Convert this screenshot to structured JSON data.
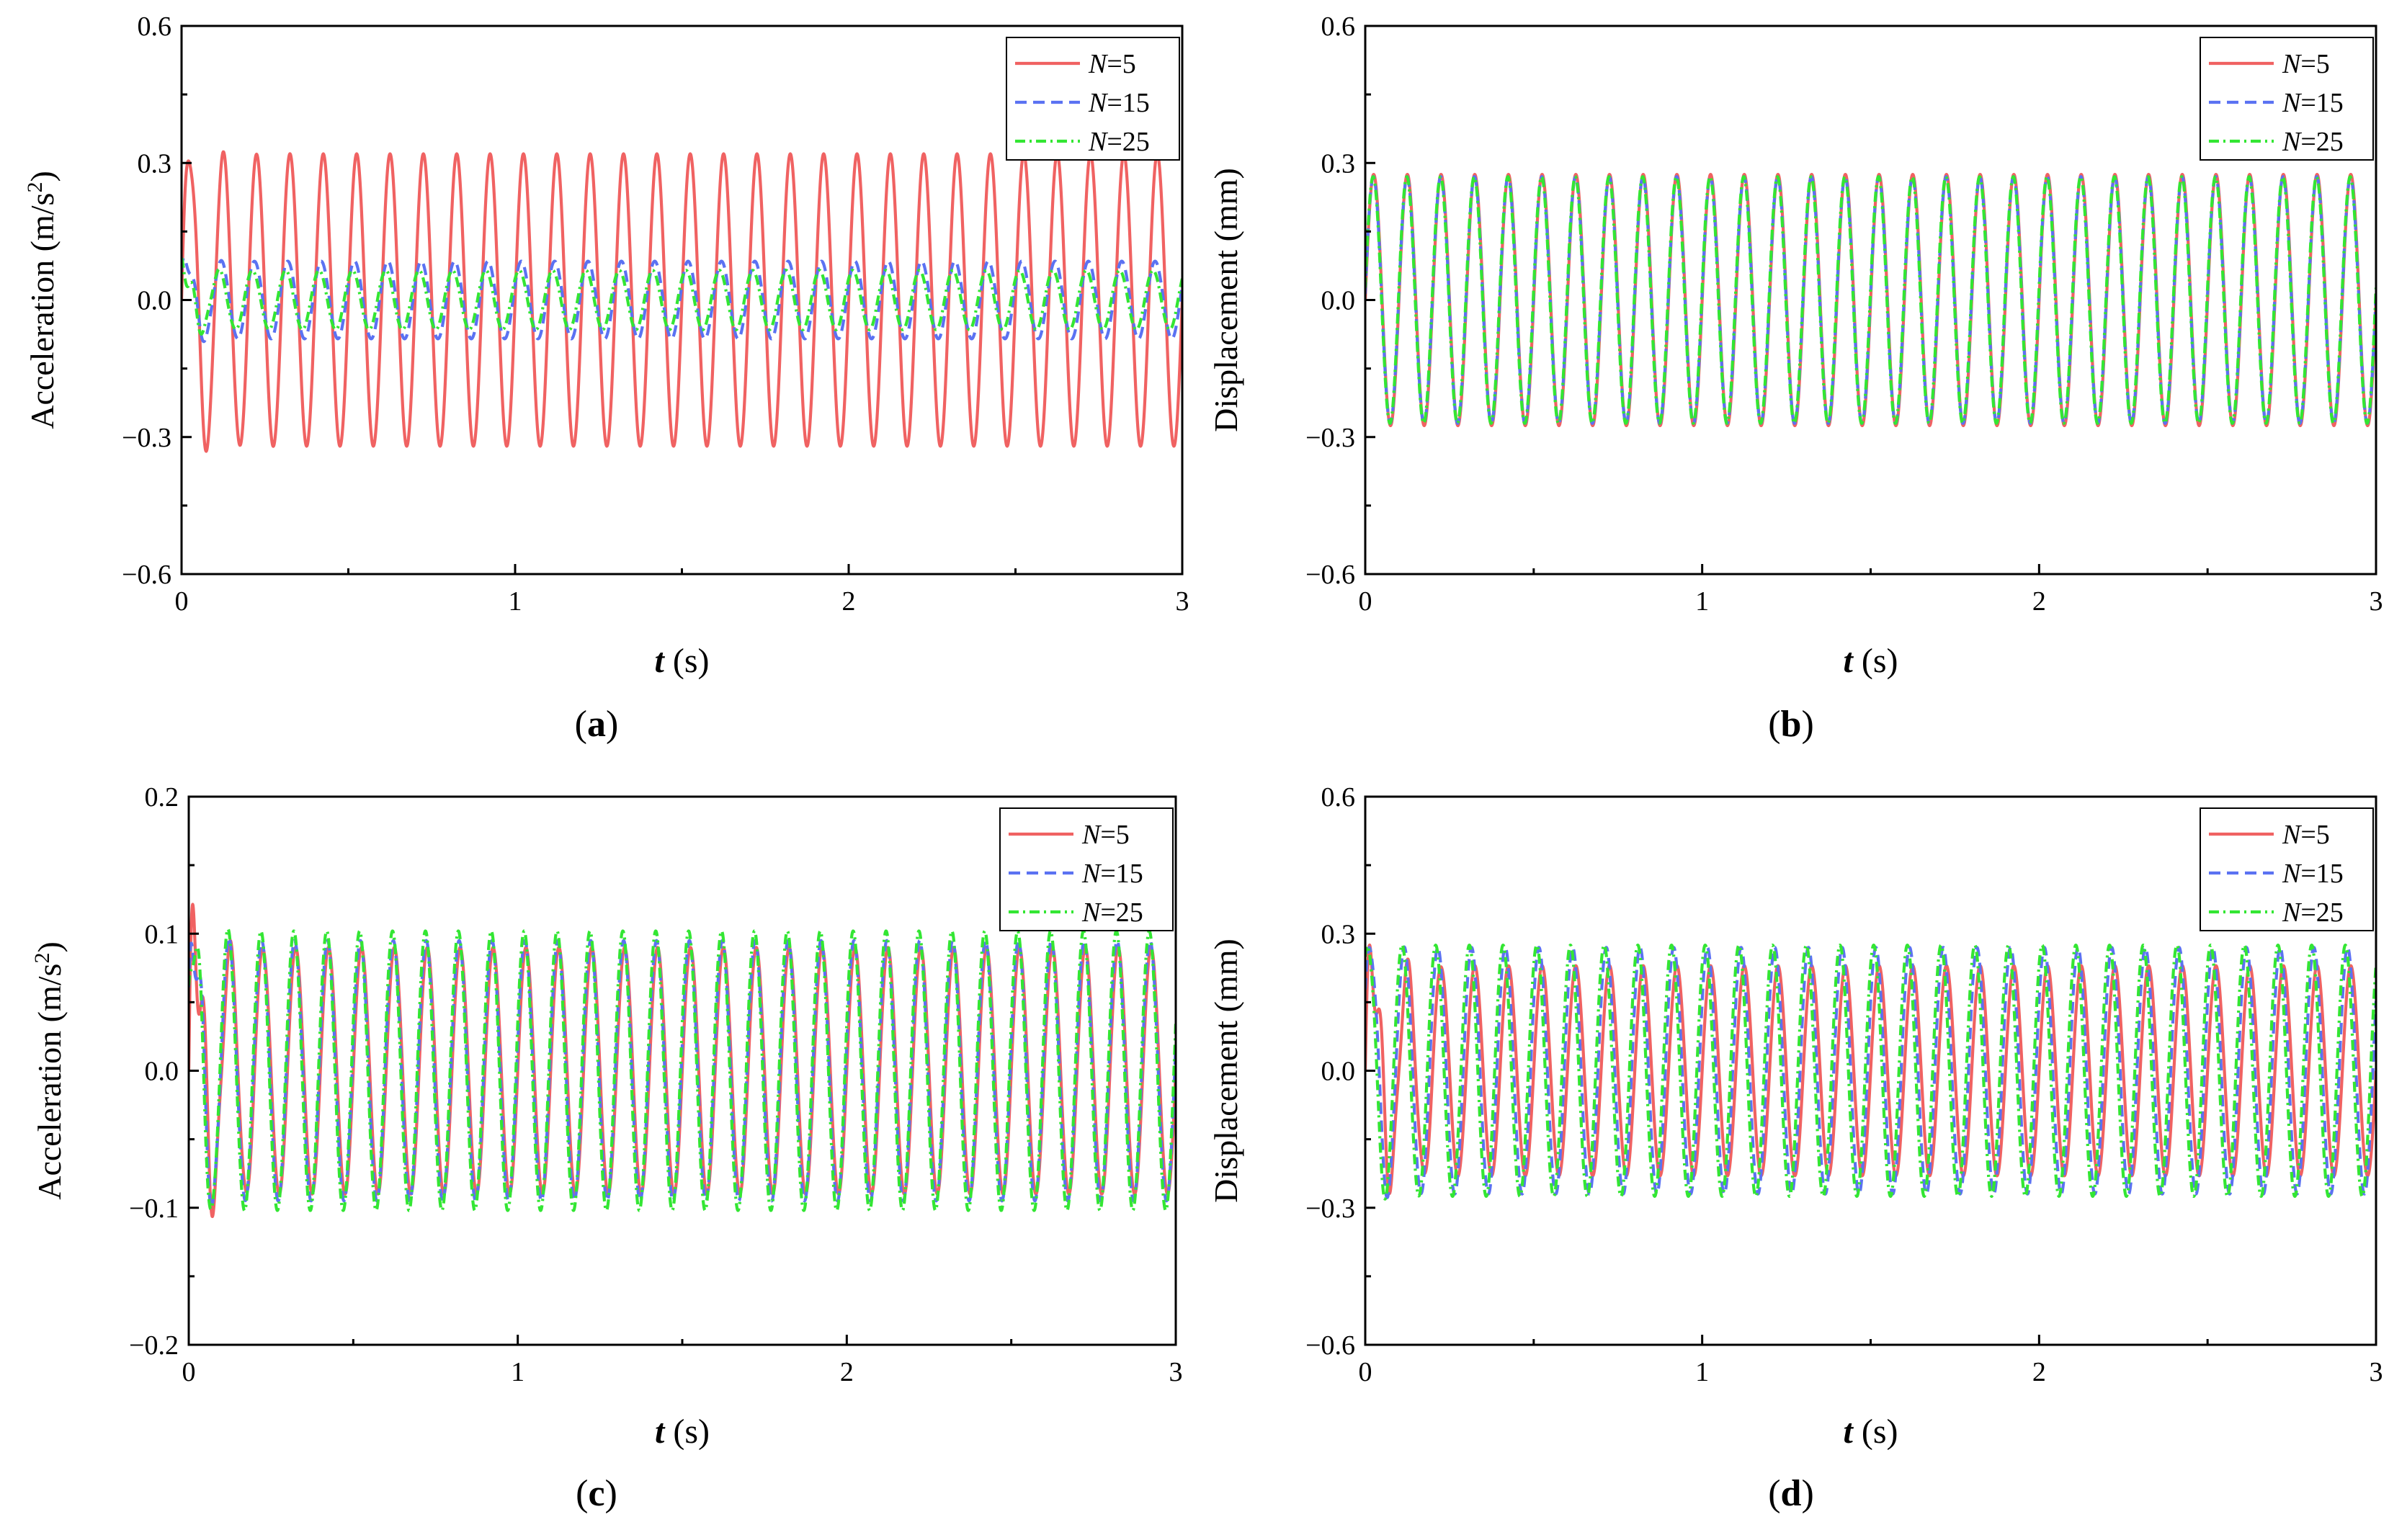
{
  "legend_labels": {
    "prefix": "N",
    "n5": "=5",
    "n15": "=15",
    "n25": "=25"
  },
  "colors": {
    "n5": "#f06262",
    "n15": "#5b72f2",
    "n25": "#33e633"
  },
  "x_axis": {
    "var": "t",
    "unit": " (s)",
    "ticks": [
      "0",
      "1",
      "2",
      "3"
    ]
  },
  "chart_data": [
    {
      "id": "a",
      "caption": "a",
      "type": "line",
      "ylabel_main": "Acceleration (m/s",
      "ylabel_sup": "2",
      "ylabel_tail": ")",
      "xlim": [
        0,
        3
      ],
      "ylim": [
        -0.6,
        0.6
      ],
      "yticks": [
        "0.6",
        "0.3",
        "0.0",
        "−0.3",
        "−0.6"
      ],
      "legend": "top-right",
      "series": [
        {
          "name": "N=5",
          "style": "solid",
          "amplitude": 0.32,
          "frequency_hz": 10.0,
          "phase": 0.0,
          "transient": 0.05,
          "transient_decay": 0.06
        },
        {
          "name": "N=15",
          "style": "dashed",
          "amplitude": 0.085,
          "frequency_hz": 10.0,
          "phase": 0.4,
          "transient": 0.04,
          "transient_decay": 0.04
        },
        {
          "name": "N=25",
          "style": "dashdot",
          "amplitude": 0.065,
          "frequency_hz": 10.0,
          "phase": 0.8,
          "transient": 0.05,
          "transient_decay": 0.04
        }
      ]
    },
    {
      "id": "b",
      "caption": "b",
      "type": "line",
      "ylabel_main": "Displacement (mm)",
      "ylabel_sup": "",
      "ylabel_tail": "",
      "xlim": [
        0,
        3
      ],
      "ylim": [
        -0.6,
        0.6
      ],
      "yticks": [
        "0.6",
        "0.3",
        "0.0",
        "−0.3",
        "−0.6"
      ],
      "legend": "top-right",
      "series": [
        {
          "name": "N=5",
          "style": "solid",
          "amplitude": 0.275,
          "frequency_hz": 10.0,
          "phase": 0.0,
          "transient": 0.0,
          "transient_decay": 0.04
        },
        {
          "name": "N=15",
          "style": "dashed",
          "amplitude": 0.27,
          "frequency_hz": 10.0,
          "phase": 0.05,
          "transient": 0.0,
          "transient_decay": 0.04
        },
        {
          "name": "N=25",
          "style": "dashdot",
          "amplitude": 0.27,
          "frequency_hz": 10.0,
          "phase": 0.1,
          "transient": 0.0,
          "transient_decay": 0.04
        }
      ]
    },
    {
      "id": "c",
      "caption": "c",
      "type": "line",
      "ylabel_main": "Acceleration (m/s",
      "ylabel_sup": "2",
      "ylabel_tail": ")",
      "xlim": [
        0,
        3
      ],
      "ylim": [
        -0.2,
        0.2
      ],
      "yticks": [
        "0.2",
        "0.1",
        "0.0",
        "−0.1",
        "−0.2"
      ],
      "legend": "top-right",
      "series": [
        {
          "name": "N=5",
          "style": "solid",
          "amplitude": 0.09,
          "frequency_hz": 10.0,
          "phase": 0.0,
          "transient": 0.08,
          "transient_decay": 0.05
        },
        {
          "name": "N=15",
          "style": "dashed",
          "amplitude": 0.095,
          "frequency_hz": 10.0,
          "phase": 0.2,
          "transient": 0.05,
          "transient_decay": 0.04
        },
        {
          "name": "N=25",
          "style": "dashdot",
          "amplitude": 0.102,
          "frequency_hz": 10.0,
          "phase": 0.35,
          "transient": 0.03,
          "transient_decay": 0.04
        }
      ]
    },
    {
      "id": "d",
      "caption": "d",
      "type": "line",
      "ylabel_main": "Displacement (mm)",
      "ylabel_sup": "",
      "ylabel_tail": "",
      "xlim": [
        0,
        3
      ],
      "ylim": [
        -0.6,
        0.6
      ],
      "yticks": [
        "0.6",
        "0.3",
        "0.0",
        "−0.3",
        "−0.6"
      ],
      "legend": "top-right",
      "series": [
        {
          "name": "N=5",
          "style": "solid",
          "amplitude": 0.23,
          "frequency_hz": 10.0,
          "phase": 0.0,
          "transient": 0.15,
          "transient_decay": 0.06
        },
        {
          "name": "N=15",
          "style": "dashed",
          "amplitude": 0.27,
          "frequency_hz": 10.0,
          "phase": 0.6,
          "transient": 0.03,
          "transient_decay": 0.05
        },
        {
          "name": "N=25",
          "style": "dashdot",
          "amplitude": 0.275,
          "frequency_hz": 10.0,
          "phase": 1.0,
          "transient": 0.02,
          "transient_decay": 0.05
        }
      ]
    }
  ]
}
